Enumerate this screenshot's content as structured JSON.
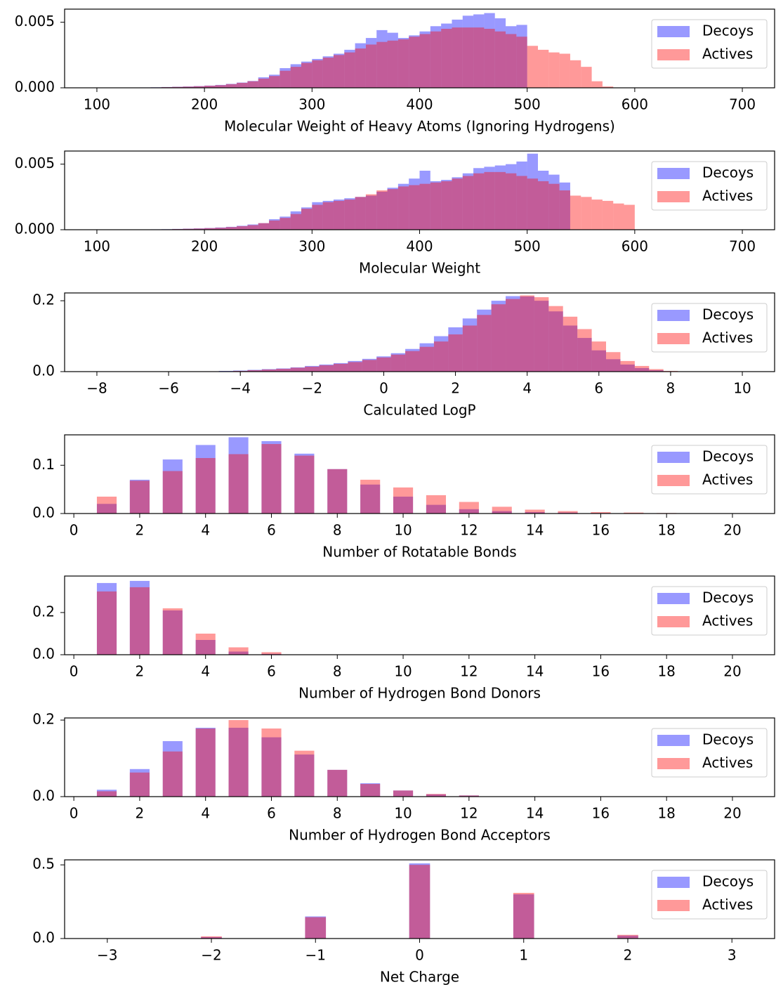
{
  "chart_data": [
    {
      "type": "histogram",
      "x_label": "Molecular Weight of Heavy Atoms (Ignoring Hydrogens)",
      "bins": [
        130,
        140,
        150,
        160,
        170,
        180,
        190,
        200,
        210,
        220,
        230,
        240,
        250,
        260,
        270,
        280,
        290,
        300,
        310,
        320,
        330,
        340,
        350,
        360,
        370,
        380,
        390,
        400,
        410,
        420,
        430,
        440,
        450,
        460,
        470,
        480,
        490,
        500,
        510,
        520,
        530,
        540,
        550,
        560,
        570,
        580
      ],
      "series": [
        {
          "name": "Decoys",
          "color": "#0000ff",
          "values": [
            2e-05,
            3e-05,
            4e-05,
            6e-05,
            8e-05,
            0.0001,
            0.00013,
            0.00017,
            0.00022,
            0.0003,
            0.0004,
            0.00052,
            0.0008,
            0.001,
            0.0015,
            0.0018,
            0.002,
            0.0022,
            0.0024,
            0.0026,
            0.0029,
            0.0034,
            0.0038,
            0.0044,
            0.0042,
            0.0038,
            0.004,
            0.0043,
            0.0047,
            0.0049,
            0.0052,
            0.0055,
            0.0056,
            0.0057,
            0.0053,
            0.0047,
            0.0048,
            0,
            0,
            0,
            0,
            0,
            0,
            0,
            0
          ]
        },
        {
          "name": "Actives",
          "color": "#ff0000",
          "values": [
            1e-05,
            2e-05,
            3e-05,
            5e-05,
            7e-05,
            9e-05,
            0.00012,
            0.00016,
            0.0002,
            0.00028,
            0.00038,
            0.0005,
            0.0007,
            0.0009,
            0.0013,
            0.0016,
            0.0019,
            0.0021,
            0.0023,
            0.0025,
            0.0027,
            0.003,
            0.0033,
            0.0035,
            0.0036,
            0.0037,
            0.0039,
            0.0041,
            0.0043,
            0.0045,
            0.0046,
            0.0046,
            0.0046,
            0.0045,
            0.0043,
            0.0041,
            0.0039,
            0.0032,
            0.0029,
            0.0027,
            0.0026,
            0.0021,
            0.0016,
            0.0005,
            0.0001
          ]
        }
      ],
      "alpha": 0.4,
      "legend": "upper right",
      "xlim": [
        70,
        730
      ],
      "xticks": [
        100,
        200,
        300,
        400,
        500,
        600,
        700
      ],
      "ylim": [
        0,
        0.006
      ],
      "yticks": [
        {
          "value": 0,
          "label": "0.000"
        },
        {
          "value": 0.005,
          "label": "0.005"
        }
      ]
    },
    {
      "type": "histogram",
      "x_label": "Molecular Weight",
      "bins": [
        130,
        140,
        150,
        160,
        170,
        180,
        190,
        200,
        210,
        220,
        230,
        240,
        250,
        260,
        270,
        280,
        290,
        300,
        310,
        320,
        330,
        340,
        350,
        360,
        370,
        380,
        390,
        400,
        410,
        420,
        430,
        440,
        450,
        460,
        470,
        480,
        490,
        500,
        510,
        520,
        530,
        540,
        550,
        560,
        570,
        580,
        590,
        600
      ],
      "series": [
        {
          "name": "Decoys",
          "color": "#0000ff",
          "values": [
            1e-05,
            2e-05,
            3e-05,
            4e-05,
            6e-05,
            8e-05,
            0.0001,
            0.00013,
            0.00017,
            0.00022,
            0.0003,
            0.0004,
            0.0005,
            0.0008,
            0.001,
            0.0014,
            0.0017,
            0.0021,
            0.0022,
            0.0023,
            0.0024,
            0.0025,
            0.0026,
            0.0029,
            0.0032,
            0.0035,
            0.0039,
            0.0045,
            0.0037,
            0.0038,
            0.004,
            0.0043,
            0.0047,
            0.0048,
            0.0049,
            0.005,
            0.0052,
            0.0058,
            0.0045,
            0.0042,
            0.0036,
            0,
            0,
            0,
            0,
            0,
            0
          ]
        },
        {
          "name": "Actives",
          "color": "#ff0000",
          "values": [
            1e-05,
            1e-05,
            2e-05,
            3e-05,
            5e-05,
            7e-05,
            9e-05,
            0.00012,
            0.00015,
            0.0002,
            0.00027,
            0.00035,
            0.0005,
            0.0007,
            0.0009,
            0.0012,
            0.0016,
            0.0019,
            0.0021,
            0.0022,
            0.0023,
            0.0025,
            0.0027,
            0.003,
            0.0031,
            0.0033,
            0.0034,
            0.0035,
            0.0036,
            0.0037,
            0.0039,
            0.0041,
            0.0043,
            0.0044,
            0.0044,
            0.0043,
            0.0041,
            0.0039,
            0.0037,
            0.0035,
            0.003,
            0.0026,
            0.0025,
            0.0023,
            0.0022,
            0.002,
            0.0019
          ]
        }
      ],
      "alpha": 0.4,
      "legend": "upper right",
      "xlim": [
        70,
        730
      ],
      "xticks": [
        100,
        200,
        300,
        400,
        500,
        600,
        700
      ],
      "ylim": [
        0,
        0.006
      ],
      "yticks": [
        {
          "value": 0,
          "label": "0.000"
        },
        {
          "value": 0.005,
          "label": "0.005"
        }
      ]
    },
    {
      "type": "histogram",
      "x_label": "Calculated LogP",
      "bins": [
        -5,
        -4.6,
        -4.2,
        -3.8,
        -3.4,
        -3,
        -2.6,
        -2.2,
        -1.8,
        -1.4,
        -1,
        -0.6,
        -0.2,
        0.2,
        0.6,
        1,
        1.4,
        1.8,
        2.2,
        2.6,
        3,
        3.4,
        3.8,
        4.2,
        4.6,
        5,
        5.4,
        5.8,
        6.2,
        6.6,
        7,
        7.4,
        7.8,
        8.2
      ],
      "series": [
        {
          "name": "Decoys",
          "color": "#0000ff",
          "values": [
            0.001,
            0.002,
            0.003,
            0.005,
            0.007,
            0.009,
            0.012,
            0.016,
            0.02,
            0.024,
            0.03,
            0.036,
            0.043,
            0.052,
            0.064,
            0.08,
            0.1,
            0.125,
            0.15,
            0.175,
            0.2,
            0.213,
            0.212,
            0.2,
            0.17,
            0.13,
            0.095,
            0.06,
            0.035,
            0.02,
            0.01,
            0.004,
            0.001
          ]
        },
        {
          "name": "Actives",
          "color": "#ff0000",
          "values": [
            0.001,
            0.001,
            0.002,
            0.004,
            0.006,
            0.008,
            0.011,
            0.014,
            0.018,
            0.022,
            0.027,
            0.033,
            0.04,
            0.048,
            0.058,
            0.07,
            0.085,
            0.105,
            0.13,
            0.16,
            0.19,
            0.205,
            0.215,
            0.21,
            0.185,
            0.155,
            0.12,
            0.085,
            0.055,
            0.03,
            0.016,
            0.007,
            0.002
          ]
        }
      ],
      "alpha": 0.4,
      "legend": "upper right",
      "xlim": [
        -8.9,
        10.9
      ],
      "xticks": [
        {
          "value": -8,
          "label": "−8"
        },
        {
          "value": -6,
          "label": "−6"
        },
        {
          "value": -4,
          "label": "−4"
        },
        {
          "value": -2,
          "label": "−2"
        },
        0,
        2,
        4,
        6,
        8,
        10
      ],
      "ylim": [
        0,
        0.222
      ],
      "yticks": [
        {
          "value": 0,
          "label": "0.0"
        },
        0.2
      ]
    },
    {
      "type": "bar",
      "x_label": "Number of Rotatable Bonds",
      "bar_width": 0.6,
      "x": [
        1,
        2,
        3,
        4,
        5,
        6,
        7,
        8,
        9,
        10,
        11,
        12,
        13,
        14,
        15,
        16,
        17,
        18,
        19,
        20
      ],
      "series": [
        {
          "name": "Decoys",
          "color": "#0000ff",
          "values": [
            0.02,
            0.07,
            0.112,
            0.142,
            0.158,
            0.15,
            0.124,
            0.092,
            0.06,
            0.035,
            0.018,
            0.009,
            0.005,
            0.003,
            0.002,
            0.001,
            0.0005,
            0.0003,
            0.0001,
            0.0001
          ]
        },
        {
          "name": "Actives",
          "color": "#ff0000",
          "values": [
            0.035,
            0.068,
            0.088,
            0.115,
            0.123,
            0.144,
            0.12,
            0.092,
            0.07,
            0.054,
            0.038,
            0.024,
            0.014,
            0.008,
            0.005,
            0.003,
            0.002,
            0.001,
            0.0005,
            0.0002
          ]
        }
      ],
      "alpha": 0.4,
      "legend": "upper right",
      "xlim": [
        -0.28,
        21.28
      ],
      "xticks": [
        0,
        2,
        4,
        6,
        8,
        10,
        12,
        14,
        16,
        18,
        20
      ],
      "ylim": [
        0,
        0.163
      ],
      "yticks": [
        {
          "value": 0,
          "label": "0.0"
        },
        0.1
      ]
    },
    {
      "type": "bar",
      "x_label": "Number of Hydrogen Bond Donors",
      "bar_width": 0.6,
      "x": [
        1,
        2,
        3,
        4,
        5,
        6
      ],
      "series": [
        {
          "name": "Decoys",
          "color": "#0000ff",
          "values": [
            0.34,
            0.35,
            0.21,
            0.07,
            0.015,
            0.004
          ]
        },
        {
          "name": "Actives",
          "color": "#ff0000",
          "values": [
            0.3,
            0.32,
            0.22,
            0.1,
            0.035,
            0.012
          ]
        }
      ],
      "alpha": 0.4,
      "legend": "upper right",
      "xlim": [
        -0.28,
        21.28
      ],
      "xticks": [
        0,
        2,
        4,
        6,
        8,
        10,
        12,
        14,
        16,
        18,
        20
      ],
      "ylim": [
        0,
        0.373
      ],
      "yticks": [
        {
          "value": 0,
          "label": "0.0"
        },
        0.2
      ]
    },
    {
      "type": "bar",
      "x_label": "Number of Hydrogen Bond Acceptors",
      "bar_width": 0.6,
      "x": [
        1,
        2,
        3,
        4,
        5,
        6,
        7,
        8,
        9,
        10,
        11,
        12
      ],
      "series": [
        {
          "name": "Decoys",
          "color": "#0000ff",
          "values": [
            0.018,
            0.072,
            0.145,
            0.18,
            0.18,
            0.155,
            0.11,
            0.07,
            0.035,
            0.016,
            0.006,
            0.003
          ]
        },
        {
          "name": "Actives",
          "color": "#ff0000",
          "values": [
            0.014,
            0.063,
            0.118,
            0.178,
            0.2,
            0.178,
            0.12,
            0.07,
            0.033,
            0.016,
            0.007,
            0.003
          ]
        }
      ],
      "alpha": 0.4,
      "legend": "upper right",
      "xlim": [
        -0.28,
        21.28
      ],
      "xticks": [
        0,
        2,
        4,
        6,
        8,
        10,
        12,
        14,
        16,
        18,
        20
      ],
      "ylim": [
        0,
        0.2056
      ],
      "yticks": [
        {
          "value": 0,
          "label": "0.0"
        },
        0.2
      ]
    },
    {
      "type": "bar",
      "x_label": "Net Charge",
      "bar_width": 0.2,
      "x": [
        -2,
        -1,
        0,
        1,
        2
      ],
      "series": [
        {
          "name": "Decoys",
          "color": "#0000ff",
          "values": [
            0.01,
            0.15,
            0.51,
            0.3,
            0.02
          ]
        },
        {
          "name": "Actives",
          "color": "#ff0000",
          "values": [
            0.015,
            0.145,
            0.5,
            0.31,
            0.025
          ]
        }
      ],
      "alpha": 0.4,
      "legend": "upper right",
      "xlim": [
        -3.41,
        3.41
      ],
      "xticks": [
        {
          "value": -3,
          "label": "−3"
        },
        {
          "value": -2,
          "label": "−2"
        },
        {
          "value": -1,
          "label": "−1"
        },
        0,
        1,
        2,
        3
      ],
      "ylim": [
        0,
        0.534
      ],
      "yticks": [
        {
          "value": 0,
          "label": "0.0"
        },
        0.5
      ]
    }
  ]
}
